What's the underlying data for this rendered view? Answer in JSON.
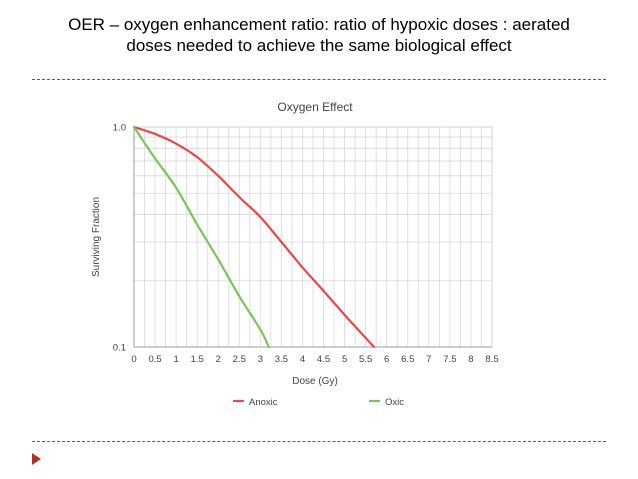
{
  "slide": {
    "title_line1": "OER – oxygen enhancement ratio:  ratio of hypoxic doses :  aerated",
    "title_line2": "doses needed to achieve the same biological effect"
  },
  "chart_data": {
    "type": "line",
    "title": "Oxygen Effect",
    "xlabel": "Dose (Gy)",
    "ylabel": "Surviving Fraction",
    "x_ticks": [
      0,
      0.5,
      1,
      1.5,
      2,
      2.5,
      3,
      3.5,
      4,
      4.5,
      5,
      5.5,
      6,
      6.5,
      7,
      7.5,
      8,
      8.5
    ],
    "y_ticks": [
      0.1,
      1.0
    ],
    "y_tick_labels": [
      "0.1",
      "1.0"
    ],
    "xlim": [
      0,
      8.5
    ],
    "ylim": [
      0.1,
      1.0
    ],
    "y_scale": "log",
    "grid": true,
    "legend_position": "bottom",
    "series": [
      {
        "name": "Anoxic",
        "color": "#e8474c",
        "x": [
          0,
          0.5,
          1,
          1.5,
          2,
          2.5,
          3,
          3.5,
          4,
          4.5,
          5,
          5.5,
          5.7
        ],
        "y": [
          1.0,
          0.93,
          0.84,
          0.73,
          0.6,
          0.48,
          0.39,
          0.3,
          0.23,
          0.18,
          0.14,
          0.11,
          0.1
        ]
      },
      {
        "name": "Oxic",
        "color": "#7cc35c",
        "x": [
          0,
          0.5,
          1,
          1.5,
          2,
          2.5,
          3,
          3.2
        ],
        "y": [
          1.0,
          0.72,
          0.53,
          0.36,
          0.25,
          0.17,
          0.12,
          0.1
        ]
      }
    ]
  }
}
